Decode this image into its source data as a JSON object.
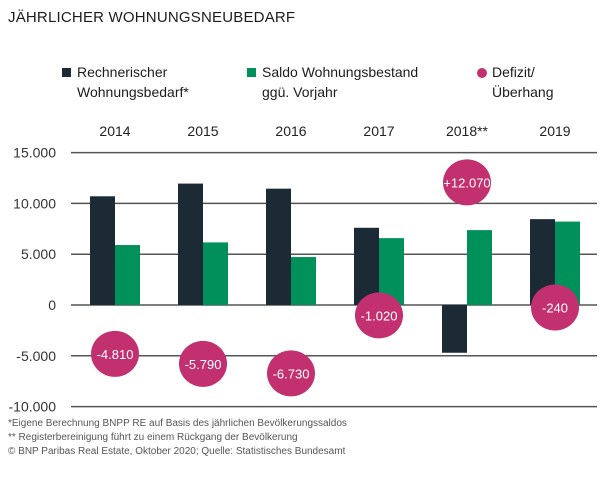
{
  "title": "JÄHRLICHER WOHNUNGSNEUBEDARF",
  "colors": {
    "bedarf": "#1c2a35",
    "saldo": "#00915a",
    "defizit": "#c2306f",
    "grid": "#555555"
  },
  "legend": [
    {
      "line1": "Rechnerischer",
      "line2": "Wohnungsbedarf*"
    },
    {
      "line1": "Saldo Wohnungsbestand",
      "line2": "ggü. Vorjahr"
    },
    {
      "line1": "Defizit/",
      "line2": "Überhang"
    }
  ],
  "chart_data": {
    "type": "bar",
    "categories": [
      "2014",
      "2015",
      "2016",
      "2017",
      "2018**",
      "2019"
    ],
    "series": [
      {
        "name": "Rechnerischer Wohnungsbedarf*",
        "values": [
          10700,
          11950,
          11450,
          7600,
          -4700,
          8450
        ]
      },
      {
        "name": "Saldo Wohnungsbestand ggü. Vorjahr",
        "values": [
          5900,
          6160,
          4720,
          6580,
          7370,
          8210
        ]
      }
    ],
    "markers": {
      "name": "Defizit/ Überhang",
      "values": [
        -4810,
        -5790,
        -6730,
        -1020,
        12070,
        -240
      ],
      "labels": [
        "-4.810",
        "-5.790",
        "-6.730",
        "-1.020",
        "+12.070",
        "-240"
      ]
    },
    "yticks": [
      15000,
      10000,
      5000,
      0,
      -5000,
      -10000
    ],
    "ytick_labels": [
      "15.000",
      "10.000",
      "5.000",
      "0",
      "-5.000",
      "-10.000"
    ],
    "ylim": [
      -10000,
      15000
    ],
    "grid": true,
    "legend_position": "top"
  },
  "footnotes": [
    "*Eigene Berechnung BNPP RE auf Basis des jährlichen Bevölkerungssaldos",
    "** Registerbereinigung führt zu einem Rückgang der Bevölkerung",
    "© BNP Paribas Real Estate, Oktober 2020; Quelle: Statistisches Bundesamt"
  ]
}
